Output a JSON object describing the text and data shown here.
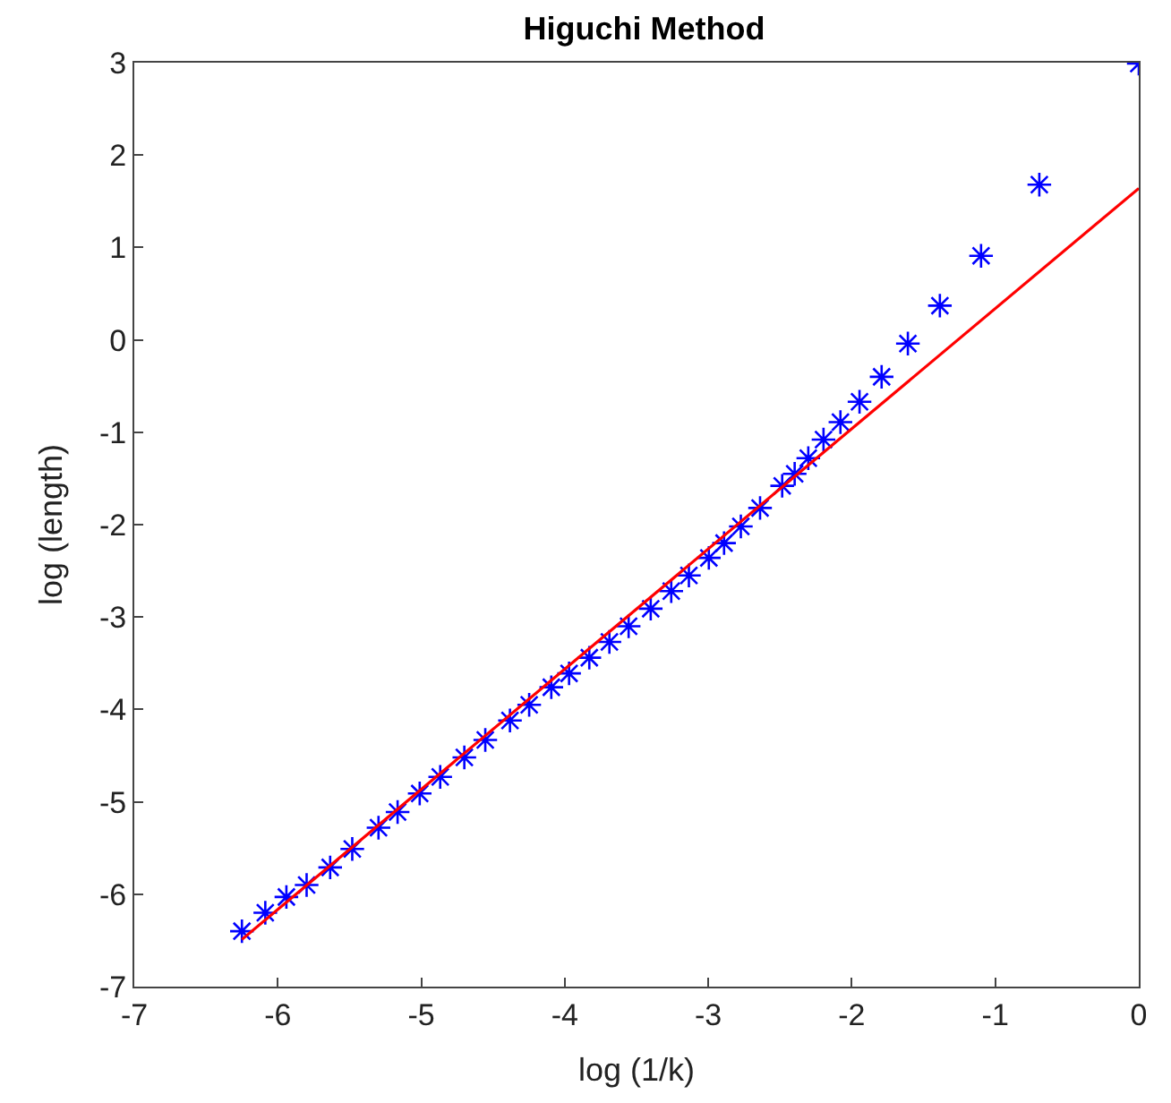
{
  "chart_data": {
    "type": "scatter",
    "title": "Higuchi Method",
    "xlabel": "log (1/k)",
    "ylabel": "log (length)",
    "xlim": [
      -7,
      0
    ],
    "ylim": [
      -7,
      3
    ],
    "xticks": [
      -7,
      -6,
      -5,
      -4,
      -3,
      -2,
      -1,
      0
    ],
    "yticks": [
      -7,
      -6,
      -5,
      -4,
      -3,
      -2,
      -1,
      0,
      1,
      2,
      3
    ],
    "series": [
      {
        "marker": "cross",
        "color": "#0000ff",
        "x": [
          0,
          -0.693,
          -1.099,
          -1.386,
          -1.609,
          -1.792,
          -1.946,
          -2.079,
          -2.197,
          -2.303,
          -2.398,
          -2.485,
          -2.639,
          -2.773,
          -2.89,
          -2.996,
          -3.135,
          -3.258,
          -3.401,
          -3.555,
          -3.689,
          -3.829,
          -3.97,
          -4.094,
          -4.248,
          -4.382,
          -4.554,
          -4.7,
          -4.868,
          -5.011,
          -5.165,
          -5.298,
          -5.481,
          -5.635,
          -5.799,
          -5.94,
          -6.087,
          -6.25
        ],
        "values": [
          2.99,
          1.68,
          0.91,
          0.37,
          -0.04,
          -0.4,
          -0.67,
          -0.89,
          -1.08,
          -1.28,
          -1.45,
          -1.58,
          -1.82,
          -2.02,
          -2.2,
          -2.36,
          -2.55,
          -2.72,
          -2.91,
          -3.1,
          -3.27,
          -3.44,
          -3.61,
          -3.76,
          -3.95,
          -4.12,
          -4.33,
          -4.52,
          -4.73,
          -4.91,
          -5.11,
          -5.28,
          -5.51,
          -5.71,
          -5.9,
          -6.03,
          -6.2,
          -6.4
        ]
      },
      {
        "type": "line",
        "line_style": "solid",
        "color": "#ff0000",
        "x": [
          -6.25,
          0
        ],
        "values": [
          -6.49,
          1.64
        ]
      }
    ]
  }
}
